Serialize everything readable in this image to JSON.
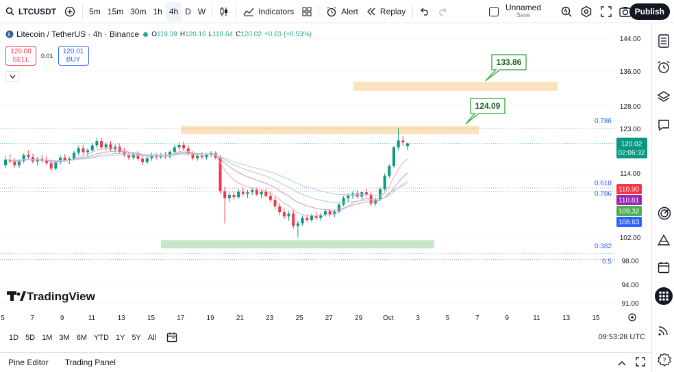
{
  "toolbar": {
    "symbol": "LTCUSDT",
    "timeframes": [
      "5m",
      "15m",
      "30m",
      "1h",
      "4h",
      "D",
      "W"
    ],
    "active_timeframe": "4h",
    "indicators_label": "Indicators",
    "alert_label": "Alert",
    "replay_label": "Replay",
    "layout_name": "Unnamed",
    "layout_status": "Save",
    "publish_label": "Publish"
  },
  "legend": {
    "title": "Litecoin / TetherUS · 4h · Binance",
    "open_label": "O",
    "open": "119.39",
    "high_label": "H",
    "high": "120.16",
    "low_label": "L",
    "low": "118.64",
    "close_label": "C",
    "close": "120.02",
    "change": "+0.63 (+0.53%)"
  },
  "trade": {
    "sell_price": "120.00",
    "sell_label": "SELL",
    "spread": "0.01",
    "buy_price": "120.01",
    "buy_label": "BUY"
  },
  "brand": "TradingView",
  "chart_data": {
    "type": "candlestick",
    "symbol": "LTCUSDT",
    "y_ticks": [
      "144.00",
      "136.00",
      "128.00",
      "123.00",
      "114.00",
      "102.00",
      "98.00",
      "94.00",
      "91.00"
    ],
    "x_ticks": [
      "5",
      "7",
      "9",
      "11",
      "13",
      "15",
      "17",
      "19",
      "21",
      "23",
      "25",
      "27",
      "29",
      "Oct",
      "3",
      "5",
      "7",
      "9",
      "11",
      "13",
      "15"
    ],
    "current_price": "120.02",
    "countdown": "02:06:32",
    "ma_labels": [
      {
        "value": "110.90",
        "color": "#f23645"
      },
      {
        "value": "110.81",
        "color": "#9c27b0"
      },
      {
        "value": "109.32",
        "color": "#4caf50"
      },
      {
        "value": "108.63",
        "color": "#2962ff"
      }
    ],
    "fib_levels": [
      {
        "label": "0.786",
        "price": 123.0
      },
      {
        "label": "0.618",
        "price": 111.2
      },
      {
        "label": "0.786",
        "price": 110.5
      },
      {
        "label": "0.382",
        "price": 99.2
      },
      {
        "label": "0.5",
        "price": 98.2
      }
    ],
    "zones": [
      {
        "type": "resistance",
        "color": "#fce2bd",
        "low": 131.5,
        "high": 133.5
      },
      {
        "type": "resistance",
        "color": "#fce2bd",
        "low": 122.0,
        "high": 123.6
      },
      {
        "type": "support",
        "color": "#c8e6c9",
        "low": 100.2,
        "high": 101.5
      }
    ],
    "targets": [
      "133.86",
      "124.09"
    ],
    "candles": [
      [
        115.6,
        117.4,
        114.9,
        116.7
      ],
      [
        116.7,
        117.8,
        116.0,
        116.3
      ],
      [
        116.3,
        117.0,
        115.1,
        115.6
      ],
      [
        115.6,
        116.8,
        115.0,
        116.4
      ],
      [
        116.4,
        118.0,
        116.0,
        117.6
      ],
      [
        117.6,
        118.6,
        116.9,
        117.2
      ],
      [
        117.2,
        117.9,
        115.9,
        116.3
      ],
      [
        116.3,
        117.2,
        115.5,
        116.9
      ],
      [
        116.9,
        117.7,
        116.1,
        116.5
      ],
      [
        116.5,
        117.4,
        115.6,
        116.0
      ],
      [
        116.0,
        116.7,
        114.4,
        114.9
      ],
      [
        114.9,
        116.6,
        114.6,
        116.2
      ],
      [
        116.2,
        117.5,
        115.7,
        117.1
      ],
      [
        117.1,
        117.8,
        116.2,
        116.6
      ],
      [
        116.6,
        117.3,
        115.8,
        116.9
      ],
      [
        116.9,
        118.5,
        116.6,
        118.1
      ],
      [
        118.1,
        119.5,
        117.6,
        119.0
      ],
      [
        119.0,
        119.7,
        117.8,
        118.2
      ],
      [
        118.2,
        119.0,
        117.4,
        118.6
      ],
      [
        118.6,
        120.1,
        118.2,
        119.6
      ],
      [
        119.6,
        121.1,
        119.1,
        120.5
      ],
      [
        120.5,
        121.1,
        118.8,
        119.2
      ],
      [
        119.2,
        120.2,
        118.6,
        119.8
      ],
      [
        119.8,
        120.5,
        118.4,
        118.8
      ],
      [
        118.8,
        119.8,
        118.2,
        119.3
      ],
      [
        119.3,
        119.9,
        117.9,
        118.3
      ],
      [
        118.3,
        119.1,
        117.2,
        117.6
      ],
      [
        117.6,
        118.3,
        116.6,
        117.1
      ],
      [
        117.1,
        118.2,
        116.7,
        117.8
      ],
      [
        117.8,
        118.4,
        116.5,
        116.9
      ],
      [
        116.9,
        117.7,
        115.6,
        116.2
      ],
      [
        116.2,
        117.4,
        115.8,
        117.0
      ],
      [
        117.0,
        118.1,
        116.5,
        117.6
      ],
      [
        117.6,
        118.0,
        116.7,
        117.2
      ],
      [
        117.2,
        118.1,
        116.8,
        117.7
      ],
      [
        117.7,
        118.3,
        116.9,
        117.3
      ],
      [
        117.3,
        118.6,
        116.9,
        118.3
      ],
      [
        118.3,
        119.7,
        118.0,
        119.2
      ],
      [
        119.2,
        120.2,
        118.7,
        119.7
      ],
      [
        119.7,
        120.4,
        118.6,
        119.0
      ],
      [
        119.0,
        119.6,
        117.5,
        117.9
      ],
      [
        117.9,
        118.4,
        116.6,
        117.0
      ],
      [
        117.0,
        118.0,
        116.5,
        117.5
      ],
      [
        117.5,
        118.2,
        116.8,
        117.2
      ],
      [
        117.2,
        118.0,
        116.7,
        117.6
      ],
      [
        117.6,
        118.4,
        117.2,
        118.0
      ],
      [
        118.0,
        118.4,
        116.7,
        117.1
      ],
      [
        117.1,
        117.6,
        110.0,
        110.6
      ],
      [
        110.6,
        111.4,
        104.6,
        109.3
      ],
      [
        109.3,
        110.4,
        108.6,
        109.9
      ],
      [
        109.9,
        110.5,
        109.0,
        109.5
      ],
      [
        109.5,
        110.9,
        109.2,
        110.5
      ],
      [
        110.5,
        111.3,
        109.7,
        110.1
      ],
      [
        110.1,
        110.8,
        109.3,
        110.4
      ],
      [
        110.4,
        111.2,
        109.9,
        110.8
      ],
      [
        110.8,
        111.3,
        109.7,
        110.0
      ],
      [
        110.0,
        110.8,
        109.3,
        110.5
      ],
      [
        110.5,
        111.0,
        109.4,
        109.7
      ],
      [
        109.7,
        110.4,
        108.6,
        109.0
      ],
      [
        109.0,
        109.6,
        107.3,
        107.8
      ],
      [
        107.8,
        108.4,
        106.2,
        106.7
      ],
      [
        106.7,
        107.4,
        105.4,
        105.9
      ],
      [
        105.9,
        106.9,
        105.1,
        106.4
      ],
      [
        106.4,
        107.2,
        103.6,
        104.1
      ],
      [
        104.1,
        105.1,
        102.0,
        104.6
      ],
      [
        104.6,
        106.1,
        104.2,
        105.6
      ],
      [
        105.6,
        106.2,
        104.8,
        105.2
      ],
      [
        105.2,
        106.4,
        104.9,
        106.0
      ],
      [
        106.0,
        106.7,
        105.2,
        105.6
      ],
      [
        105.6,
        106.6,
        105.1,
        106.2
      ],
      [
        106.2,
        107.3,
        105.9,
        106.9
      ],
      [
        106.9,
        107.3,
        105.8,
        106.3
      ],
      [
        106.3,
        107.2,
        105.7,
        106.8
      ],
      [
        106.8,
        108.5,
        106.5,
        108.1
      ],
      [
        108.1,
        109.7,
        107.8,
        109.3
      ],
      [
        109.3,
        110.2,
        108.5,
        109.8
      ],
      [
        109.8,
        110.6,
        109.2,
        110.2
      ],
      [
        110.2,
        110.8,
        109.3,
        109.6
      ],
      [
        109.6,
        110.6,
        109.1,
        110.4
      ],
      [
        110.4,
        111.1,
        109.6,
        110.0
      ],
      [
        110.0,
        110.5,
        107.8,
        108.3
      ],
      [
        108.3,
        109.4,
        107.9,
        109.0
      ],
      [
        109.0,
        111.3,
        108.8,
        111.0
      ],
      [
        111.0,
        113.9,
        110.7,
        113.5
      ],
      [
        113.5,
        115.8,
        113.1,
        115.4
      ],
      [
        115.4,
        119.5,
        115.0,
        119.2
      ],
      [
        119.2,
        123.1,
        118.6,
        120.6
      ],
      [
        120.6,
        121.5,
        119.5,
        120.2
      ],
      [
        119.4,
        120.2,
        118.6,
        120.0
      ]
    ]
  },
  "date_ranges": [
    "1D",
    "5D",
    "1M",
    "3M",
    "6M",
    "YTD",
    "1Y",
    "5Y",
    "All"
  ],
  "time": "09:53:28 UTC",
  "bottom_tabs": [
    "Pine Editor",
    "Trading Panel"
  ]
}
